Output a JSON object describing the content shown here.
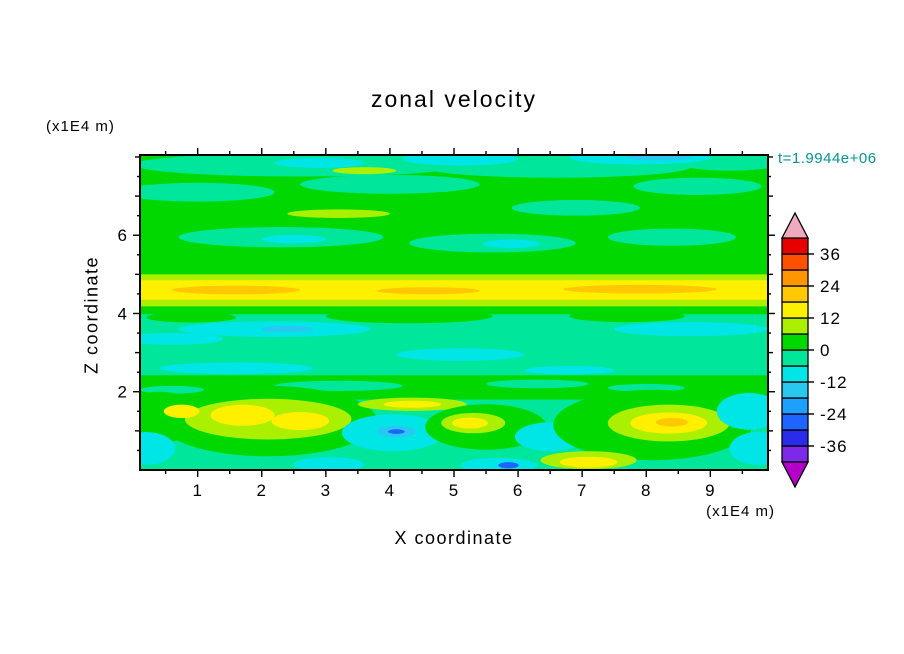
{
  "figure": {
    "title": "zonal velocity",
    "timestamp": "t=1.9944e+06",
    "timestamp_color": "#009695",
    "xlabel": "X coordinate",
    "ylabel": "Z coordinate",
    "x_units": "(x1E4 m)",
    "y_units": "(x1E4 m)"
  },
  "chart_data": {
    "type": "heatmap",
    "title": "zonal velocity",
    "xlabel": "X coordinate (x1E4 m)",
    "ylabel": "Z coordinate (x1E4 m)",
    "timestamp": "t=1.9944e+06",
    "xlim": [
      0.1,
      9.9
    ],
    "ylim": [
      0,
      8.05
    ],
    "x_ticks": [
      1,
      2,
      3,
      4,
      5,
      6,
      7,
      8,
      9
    ],
    "y_ticks": [
      2,
      4,
      6
    ],
    "x_minor_step": 0.5,
    "y_minor_step": 0.5,
    "grid": false,
    "colorbar": {
      "position": "right",
      "levels": [
        -42,
        -36,
        -30,
        -24,
        -18,
        -12,
        -6,
        0,
        6,
        12,
        18,
        24,
        30,
        36,
        42
      ],
      "colors": [
        "#7D2AE8",
        "#2B2BEB",
        "#1E64FF",
        "#1EA0FF",
        "#28C8F0",
        "#00E6E6",
        "#00E69B",
        "#00D800",
        "#AAF000",
        "#FFF000",
        "#FFC800",
        "#FF9600",
        "#FF5000",
        "#E60000"
      ],
      "labels": [
        "36",
        "24",
        "12",
        "0",
        "-12",
        "-24",
        "-36"
      ],
      "label_values": [
        36,
        24,
        12,
        0,
        -12,
        -24,
        -36
      ],
      "under_color": "#B400C8",
      "over_color": "#F0AABE"
    },
    "features": [
      {
        "desc": "strong eastward jet spanning full width",
        "x_range": [
          0.1,
          9.9
        ],
        "z_range": [
          4.35,
          4.85
        ],
        "value_range": [
          12,
          24
        ]
      },
      {
        "desc": "near-zero background flow over most of the domain",
        "value_range": [
          -6,
          6
        ]
      },
      {
        "desc": "westward patches near surface around x=4, x=6.5 and right edge",
        "value_range": [
          -18,
          -6
        ]
      },
      {
        "desc": "eastward patches near surface at x=1-3, x=5, x=8-9",
        "value_range": [
          12,
          24
        ]
      },
      {
        "desc": "weak westward streaks along top boundary with small core near x=8.2",
        "value_range": [
          -24,
          -6
        ]
      }
    ],
    "background": "seagreen",
    "plot_colors": {
      "green": "#00D800",
      "seagreen": "#00E69B",
      "cyan": "#00E6E6",
      "sky": "#28C8F0",
      "ltblue": "#1EA0FF",
      "blue": "#1E64FF",
      "ygreen": "#AAF000",
      "yellow": "#FFF000",
      "amber": "#FFC800"
    },
    "shapes": [
      {
        "t": "r",
        "x": 0,
        "z": 4.97,
        "w": 10,
        "h": 3.1,
        "c": "green"
      },
      {
        "t": "e",
        "cx": 2.6,
        "cz": 7.8,
        "rx": 2.6,
        "rz": 0.3,
        "c": "seagreen"
      },
      {
        "t": "e",
        "cx": 6.6,
        "cz": 7.75,
        "rx": 2.1,
        "rz": 0.28,
        "c": "seagreen"
      },
      {
        "t": "e",
        "cx": 9.3,
        "cz": 7.9,
        "rx": 0.9,
        "rz": 0.25,
        "c": "seagreen"
      },
      {
        "t": "e",
        "cx": 5.1,
        "cz": 7.95,
        "rx": 0.9,
        "rz": 0.17,
        "c": "cyan"
      },
      {
        "t": "e",
        "cx": 7.9,
        "cz": 7.98,
        "rx": 1.1,
        "rz": 0.17,
        "c": "cyan"
      },
      {
        "t": "e",
        "cx": 2.9,
        "cz": 7.85,
        "rx": 0.7,
        "rz": 0.13,
        "c": "cyan"
      },
      {
        "t": "e",
        "cx": 8.2,
        "cz": 8.0,
        "rx": 0.5,
        "rz": 0.09,
        "c": "sky"
      },
      {
        "t": "e",
        "cx": 3.6,
        "cz": 7.65,
        "rx": 0.5,
        "rz": 0.09,
        "c": "ygreen"
      },
      {
        "t": "e",
        "cx": 1.0,
        "cz": 7.1,
        "rx": 1.2,
        "rz": 0.24,
        "c": "seagreen"
      },
      {
        "t": "e",
        "cx": 4.0,
        "cz": 7.3,
        "rx": 1.4,
        "rz": 0.24,
        "c": "seagreen"
      },
      {
        "t": "e",
        "cx": 8.8,
        "cz": 7.25,
        "rx": 1.0,
        "rz": 0.22,
        "c": "seagreen"
      },
      {
        "t": "e",
        "cx": 6.9,
        "cz": 6.7,
        "rx": 1.0,
        "rz": 0.2,
        "c": "seagreen"
      },
      {
        "t": "e",
        "cx": 2.3,
        "cz": 5.95,
        "rx": 1.6,
        "rz": 0.26,
        "c": "seagreen"
      },
      {
        "t": "e",
        "cx": 5.6,
        "cz": 5.8,
        "rx": 1.3,
        "rz": 0.24,
        "c": "seagreen"
      },
      {
        "t": "e",
        "cx": 8.4,
        "cz": 5.95,
        "rx": 1.0,
        "rz": 0.22,
        "c": "seagreen"
      },
      {
        "t": "e",
        "cx": 5.9,
        "cz": 5.78,
        "rx": 0.45,
        "rz": 0.11,
        "c": "cyan"
      },
      {
        "t": "e",
        "cx": 2.5,
        "cz": 5.9,
        "rx": 0.5,
        "rz": 0.11,
        "c": "cyan"
      },
      {
        "t": "e",
        "cx": 3.2,
        "cz": 6.55,
        "rx": 0.8,
        "rz": 0.11,
        "c": "ygreen"
      },
      {
        "t": "r",
        "x": 0,
        "z": 4.18,
        "w": 10,
        "h": 0.82,
        "c": "ygreen"
      },
      {
        "t": "r",
        "x": 0,
        "z": 4.35,
        "w": 10,
        "h": 0.5,
        "c": "yellow"
      },
      {
        "t": "e",
        "cx": 1.6,
        "cz": 4.6,
        "rx": 1.0,
        "rz": 0.11,
        "c": "amber"
      },
      {
        "t": "e",
        "cx": 7.9,
        "cz": 4.62,
        "rx": 1.2,
        "rz": 0.11,
        "c": "amber"
      },
      {
        "t": "e",
        "cx": 4.6,
        "cz": 4.58,
        "rx": 0.8,
        "rz": 0.09,
        "c": "amber"
      },
      {
        "t": "r",
        "x": 0,
        "z": 3.98,
        "w": 10,
        "h": 0.2,
        "c": "green"
      },
      {
        "t": "e",
        "cx": 4.3,
        "cz": 3.93,
        "rx": 1.3,
        "rz": 0.18,
        "c": "green"
      },
      {
        "t": "e",
        "cx": 7.7,
        "cz": 3.93,
        "rx": 0.9,
        "rz": 0.15,
        "c": "green"
      },
      {
        "t": "e",
        "cx": 0.9,
        "cz": 3.9,
        "rx": 0.7,
        "rz": 0.13,
        "c": "green"
      },
      {
        "t": "e",
        "cx": 2.2,
        "cz": 3.6,
        "rx": 1.5,
        "rz": 0.2,
        "c": "cyan"
      },
      {
        "t": "e",
        "cx": 0.6,
        "cz": 3.35,
        "rx": 0.8,
        "rz": 0.15,
        "c": "cyan"
      },
      {
        "t": "e",
        "cx": 8.7,
        "cz": 3.6,
        "rx": 1.2,
        "rz": 0.18,
        "c": "cyan"
      },
      {
        "t": "e",
        "cx": 5.1,
        "cz": 2.95,
        "rx": 1.0,
        "rz": 0.16,
        "c": "cyan"
      },
      {
        "t": "e",
        "cx": 1.6,
        "cz": 2.6,
        "rx": 1.2,
        "rz": 0.15,
        "c": "cyan"
      },
      {
        "t": "e",
        "cx": 6.8,
        "cz": 2.55,
        "rx": 0.7,
        "rz": 0.11,
        "c": "cyan"
      },
      {
        "t": "e",
        "cx": 2.4,
        "cz": 3.6,
        "rx": 0.4,
        "rz": 0.08,
        "c": "sky"
      },
      {
        "t": "r",
        "x": 0,
        "z": 1.8,
        "w": 10,
        "h": 0.62,
        "c": "green"
      },
      {
        "t": "e",
        "cx": 3.2,
        "cz": 2.15,
        "rx": 1.0,
        "rz": 0.13,
        "c": "seagreen"
      },
      {
        "t": "e",
        "cx": 6.3,
        "cz": 2.2,
        "rx": 0.8,
        "rz": 0.11,
        "c": "seagreen"
      },
      {
        "t": "e",
        "cx": 0.6,
        "cz": 2.05,
        "rx": 0.5,
        "rz": 0.1,
        "c": "seagreen"
      },
      {
        "t": "e",
        "cx": 8.0,
        "cz": 2.1,
        "rx": 0.6,
        "rz": 0.1,
        "c": "seagreen"
      },
      {
        "t": "e",
        "cx": 2.1,
        "cz": 1.25,
        "rx": 1.7,
        "rz": 0.9,
        "c": "green"
      },
      {
        "t": "e",
        "cx": 0.4,
        "cz": 1.35,
        "rx": 0.7,
        "rz": 0.65,
        "c": "green"
      },
      {
        "t": "e",
        "cx": 2.1,
        "cz": 1.3,
        "rx": 1.3,
        "rz": 0.52,
        "c": "ygreen"
      },
      {
        "t": "e",
        "cx": 1.7,
        "cz": 1.4,
        "rx": 0.5,
        "rz": 0.27,
        "c": "yellow"
      },
      {
        "t": "e",
        "cx": 2.6,
        "cz": 1.25,
        "rx": 0.45,
        "rz": 0.23,
        "c": "yellow"
      },
      {
        "t": "e",
        "cx": 0.75,
        "cz": 1.5,
        "rx": 0.28,
        "rz": 0.17,
        "c": "yellow"
      },
      {
        "t": "e",
        "cx": 4.05,
        "cz": 0.95,
        "rx": 0.8,
        "rz": 0.47,
        "c": "cyan"
      },
      {
        "t": "e",
        "cx": 4.1,
        "cz": 0.98,
        "rx": 0.3,
        "rz": 0.15,
        "c": "sky"
      },
      {
        "t": "e",
        "cx": 4.1,
        "cz": 0.98,
        "rx": 0.13,
        "rz": 0.06,
        "c": "blue"
      },
      {
        "t": "e",
        "cx": 4.35,
        "cz": 1.68,
        "rx": 0.85,
        "rz": 0.17,
        "c": "ygreen"
      },
      {
        "t": "e",
        "cx": 4.35,
        "cz": 1.68,
        "rx": 0.45,
        "rz": 0.09,
        "c": "yellow"
      },
      {
        "t": "e",
        "cx": 5.5,
        "cz": 1.1,
        "rx": 0.95,
        "rz": 0.58,
        "c": "green"
      },
      {
        "t": "e",
        "cx": 5.3,
        "cz": 1.2,
        "rx": 0.5,
        "rz": 0.26,
        "c": "ygreen"
      },
      {
        "t": "e",
        "cx": 5.25,
        "cz": 1.2,
        "rx": 0.28,
        "rz": 0.14,
        "c": "yellow"
      },
      {
        "t": "e",
        "cx": 6.5,
        "cz": 0.85,
        "rx": 0.55,
        "rz": 0.37,
        "c": "cyan"
      },
      {
        "t": "e",
        "cx": 8.1,
        "cz": 1.15,
        "rx": 1.55,
        "rz": 0.9,
        "c": "green"
      },
      {
        "t": "e",
        "cx": 8.35,
        "cz": 1.2,
        "rx": 0.95,
        "rz": 0.47,
        "c": "ygreen"
      },
      {
        "t": "e",
        "cx": 8.35,
        "cz": 1.2,
        "rx": 0.6,
        "rz": 0.27,
        "c": "yellow"
      },
      {
        "t": "e",
        "cx": 8.4,
        "cz": 1.22,
        "rx": 0.25,
        "rz": 0.11,
        "c": "amber"
      },
      {
        "t": "e",
        "cx": 7.1,
        "cz": 0.25,
        "rx": 0.75,
        "rz": 0.23,
        "c": "ygreen"
      },
      {
        "t": "e",
        "cx": 7.1,
        "cz": 0.2,
        "rx": 0.45,
        "rz": 0.14,
        "c": "yellow"
      },
      {
        "t": "e",
        "cx": 9.6,
        "cz": 1.5,
        "rx": 0.5,
        "rz": 0.47,
        "c": "cyan"
      },
      {
        "t": "e",
        "cx": 9.75,
        "cz": 0.55,
        "rx": 0.45,
        "rz": 0.42,
        "c": "cyan"
      },
      {
        "t": "e",
        "cx": 3.05,
        "cz": 0.14,
        "rx": 0.55,
        "rz": 0.19,
        "c": "cyan"
      },
      {
        "t": "e",
        "cx": 5.7,
        "cz": 0.12,
        "rx": 0.6,
        "rz": 0.19,
        "c": "cyan"
      },
      {
        "t": "e",
        "cx": 5.85,
        "cz": 0.12,
        "rx": 0.16,
        "rz": 0.08,
        "c": "blue"
      },
      {
        "t": "e",
        "cx": 0.2,
        "cz": 0.55,
        "rx": 0.45,
        "rz": 0.42,
        "c": "cyan"
      }
    ]
  }
}
